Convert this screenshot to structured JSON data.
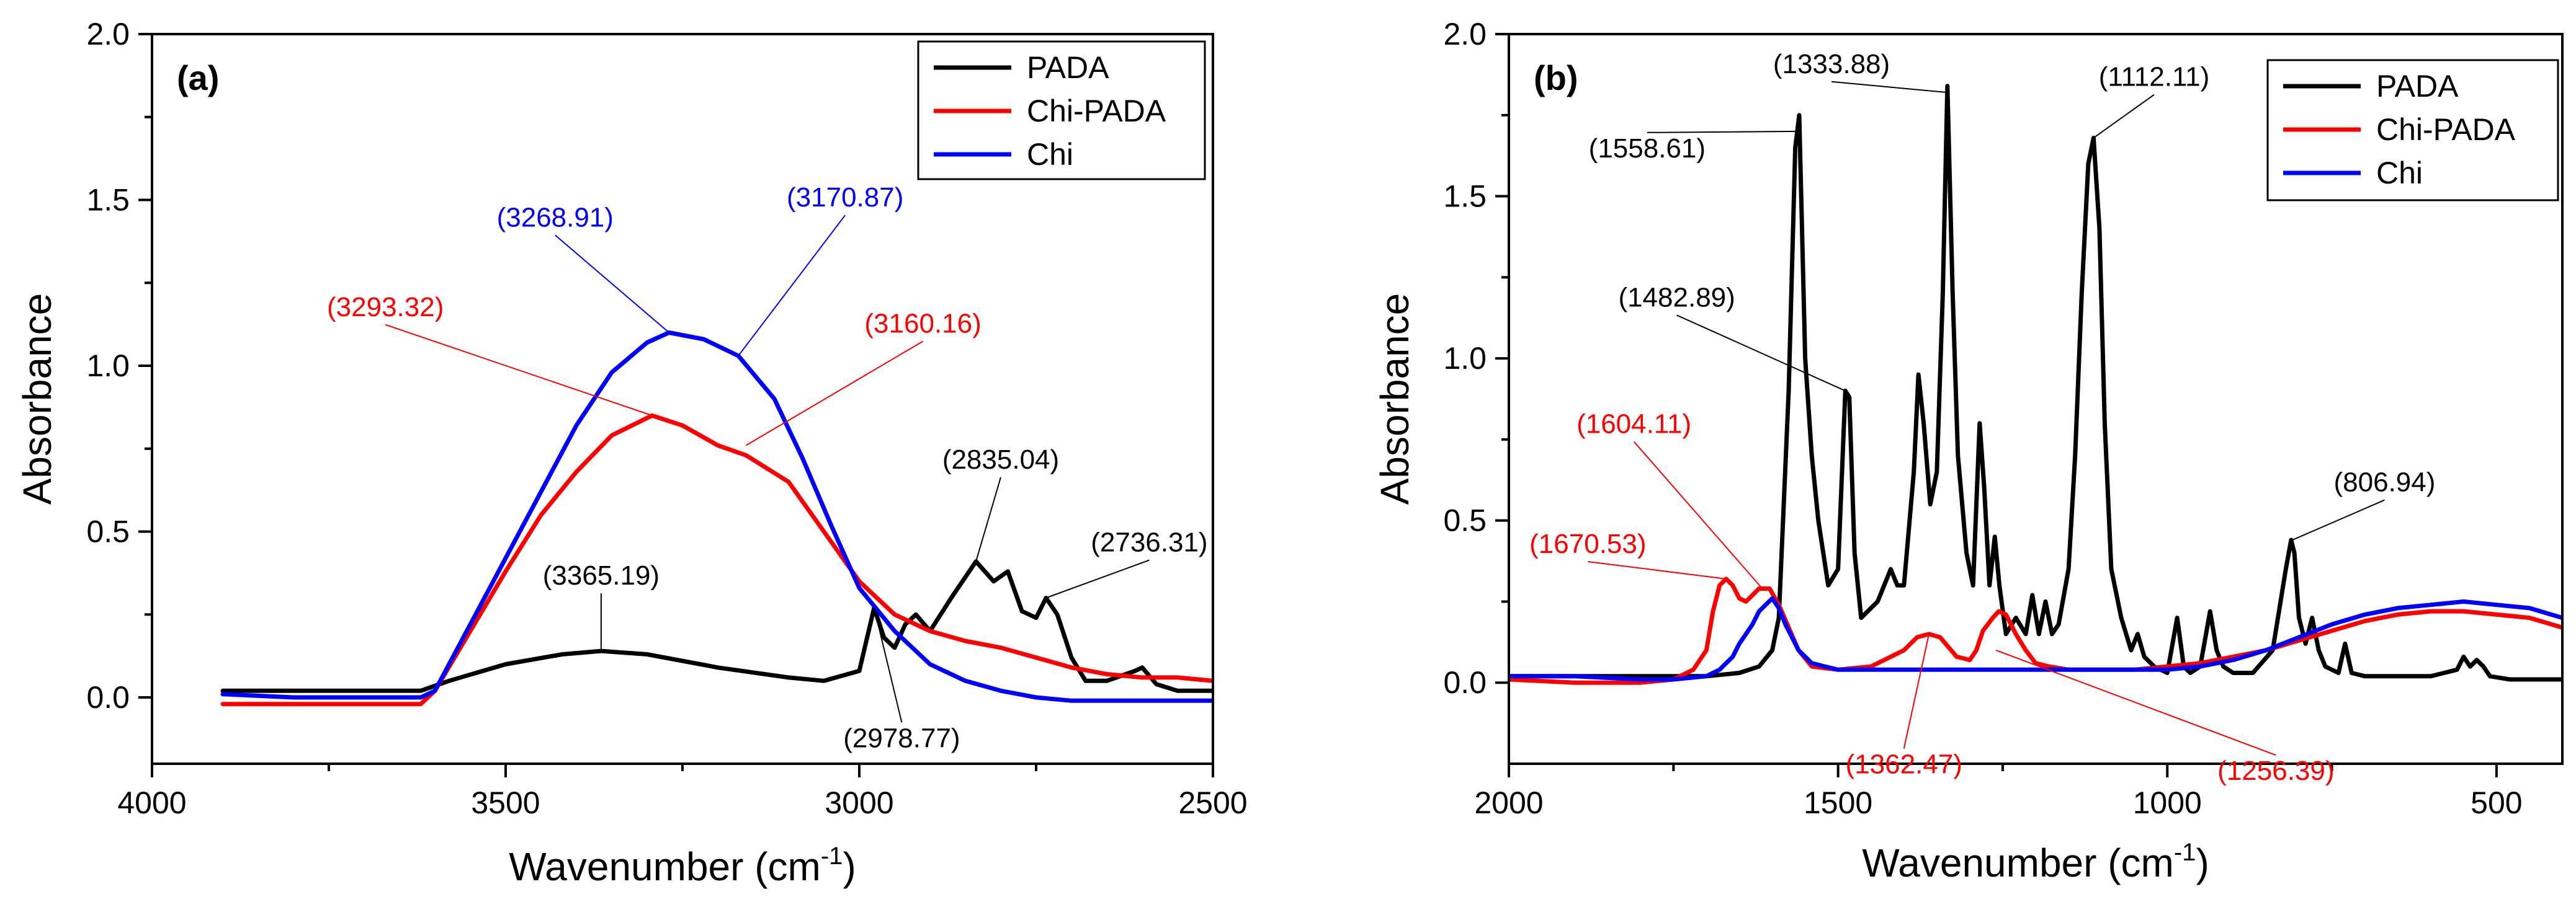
{
  "chart_data": [
    {
      "id": "a",
      "type": "line",
      "panel_label": "(a)",
      "xlabel": "Wavenumber (cm",
      "xlabel_sup": "-1",
      "xlabel_close": ")",
      "ylabel": "Absorbance",
      "xlim": [
        4000,
        2500
      ],
      "ylim": [
        -0.2,
        2.0
      ],
      "xticks": [
        4000,
        3500,
        3000,
        2500
      ],
      "xtick_labels": [
        "4000",
        "3500",
        "3000",
        "2500"
      ],
      "yticks": [
        0.0,
        0.5,
        1.0,
        1.5,
        2.0
      ],
      "ytick_labels": [
        "0.0",
        "0.5",
        "1.0",
        "1.5",
        "2.0"
      ],
      "legend_position": "top-right",
      "series": [
        {
          "name": "PADA",
          "color": "#000000",
          "x": [
            3900,
            3800,
            3700,
            3620,
            3580,
            3500,
            3420,
            3365,
            3300,
            3200,
            3100,
            3050,
            3000,
            2979,
            2965,
            2950,
            2935,
            2920,
            2900,
            2870,
            2835,
            2810,
            2790,
            2770,
            2750,
            2736,
            2720,
            2700,
            2680,
            2650,
            2610,
            2600,
            2580,
            2550,
            2500
          ],
          "y": [
            0.02,
            0.02,
            0.02,
            0.02,
            0.05,
            0.1,
            0.13,
            0.14,
            0.13,
            0.09,
            0.06,
            0.05,
            0.08,
            0.27,
            0.18,
            0.15,
            0.22,
            0.25,
            0.2,
            0.3,
            0.41,
            0.35,
            0.38,
            0.26,
            0.24,
            0.3,
            0.25,
            0.12,
            0.05,
            0.05,
            0.08,
            0.09,
            0.04,
            0.02,
            0.02
          ]
        },
        {
          "name": "Chi-PADA",
          "color": "#ff0000",
          "x": [
            3900,
            3800,
            3700,
            3620,
            3600,
            3550,
            3500,
            3450,
            3400,
            3350,
            3293,
            3250,
            3200,
            3160,
            3100,
            3050,
            3000,
            2950,
            2900,
            2850,
            2800,
            2750,
            2700,
            2650,
            2600,
            2550,
            2500
          ],
          "y": [
            -0.02,
            -0.02,
            -0.02,
            -0.02,
            0.02,
            0.2,
            0.38,
            0.55,
            0.68,
            0.79,
            0.85,
            0.82,
            0.76,
            0.73,
            0.65,
            0.5,
            0.35,
            0.25,
            0.2,
            0.17,
            0.15,
            0.12,
            0.09,
            0.07,
            0.06,
            0.06,
            0.05
          ]
        },
        {
          "name": "Chi",
          "color": "#0000ff",
          "x": [
            3900,
            3800,
            3700,
            3620,
            3600,
            3550,
            3500,
            3450,
            3400,
            3350,
            3300,
            3269,
            3220,
            3171,
            3120,
            3080,
            3040,
            3000,
            2950,
            2900,
            2850,
            2800,
            2750,
            2700,
            2600,
            2500
          ],
          "y": [
            0.01,
            0.0,
            0.0,
            0.0,
            0.02,
            0.22,
            0.42,
            0.62,
            0.82,
            0.98,
            1.07,
            1.1,
            1.08,
            1.03,
            0.9,
            0.72,
            0.52,
            0.33,
            0.2,
            0.1,
            0.05,
            0.02,
            0.0,
            -0.01,
            -0.01,
            -0.01
          ]
        }
      ],
      "annotations": [
        {
          "text": "(3268.91)",
          "color": "#0000ff",
          "x": 3269,
          "y": 1.1,
          "tx": 3430,
          "ty": 1.42
        },
        {
          "text": "(3170.87)",
          "color": "#0000ff",
          "x": 3171,
          "y": 1.03,
          "tx": 3020,
          "ty": 1.48
        },
        {
          "text": "(3293.32)",
          "color": "#ff0000",
          "x": 3293,
          "y": 0.85,
          "tx": 3670,
          "ty": 1.15
        },
        {
          "text": "(3160.16)",
          "color": "#ff0000",
          "x": 3160,
          "y": 0.76,
          "tx": 2910,
          "ty": 1.1
        },
        {
          "text": "(3365.19)",
          "color": "#000000",
          "x": 3365,
          "y": 0.14,
          "tx": 3365,
          "ty": 0.34
        },
        {
          "text": "(2835.04)",
          "color": "#000000",
          "x": 2835,
          "y": 0.41,
          "tx": 2800,
          "ty": 0.69
        },
        {
          "text": "(2736.31)",
          "color": "#000000",
          "x": 2736,
          "y": 0.3,
          "tx": 2590,
          "ty": 0.44
        },
        {
          "text": "(2978.77)",
          "color": "#000000",
          "x": 2979,
          "y": 0.27,
          "tx": 2940,
          "ty": -0.15
        }
      ]
    },
    {
      "id": "b",
      "type": "line",
      "panel_label": "(b)",
      "xlabel": "Wavenumber (cm",
      "xlabel_sup": "-1",
      "xlabel_close": ")",
      "ylabel": "Absorbance",
      "xlim": [
        2000,
        400
      ],
      "ylim": [
        -0.25,
        2.0
      ],
      "xticks": [
        2000,
        1500,
        1000,
        500
      ],
      "xtick_labels": [
        "2000",
        "1500",
        "1000",
        "500"
      ],
      "yticks": [
        0.0,
        0.5,
        1.0,
        1.5,
        2.0
      ],
      "ytick_labels": [
        "0.0",
        "0.5",
        "1.0",
        "1.5",
        "2.0"
      ],
      "legend_position": "top-right",
      "series": [
        {
          "name": "PADA",
          "color": "#000000",
          "x": [
            2000,
            1800,
            1700,
            1650,
            1620,
            1600,
            1590,
            1575,
            1565,
            1559,
            1550,
            1540,
            1530,
            1515,
            1500,
            1489,
            1483,
            1475,
            1465,
            1440,
            1420,
            1410,
            1400,
            1385,
            1378,
            1370,
            1360,
            1350,
            1341,
            1334,
            1326,
            1318,
            1305,
            1295,
            1285,
            1278,
            1270,
            1262,
            1255,
            1245,
            1230,
            1215,
            1205,
            1195,
            1185,
            1175,
            1165,
            1150,
            1140,
            1130,
            1120,
            1112,
            1103,
            1095,
            1085,
            1070,
            1055,
            1045,
            1035,
            1020,
            1000,
            985,
            975,
            965,
            950,
            935,
            925,
            915,
            900,
            870,
            840,
            820,
            812,
            807,
            800,
            790,
            780,
            770,
            760,
            740,
            730,
            720,
            700,
            650,
            600,
            560,
            550,
            540,
            530,
            520,
            510,
            480,
            400
          ],
          "y": [
            0.02,
            0.02,
            0.02,
            0.03,
            0.05,
            0.1,
            0.2,
            0.9,
            1.65,
            1.75,
            1.0,
            0.7,
            0.5,
            0.3,
            0.35,
            0.9,
            0.88,
            0.4,
            0.2,
            0.25,
            0.35,
            0.3,
            0.3,
            0.65,
            0.95,
            0.8,
            0.55,
            0.65,
            1.2,
            1.84,
            1.2,
            0.7,
            0.4,
            0.3,
            0.8,
            0.6,
            0.3,
            0.45,
            0.3,
            0.15,
            0.2,
            0.15,
            0.27,
            0.15,
            0.25,
            0.15,
            0.18,
            0.35,
            0.7,
            1.2,
            1.6,
            1.68,
            1.4,
            0.8,
            0.35,
            0.2,
            0.1,
            0.15,
            0.08,
            0.05,
            0.03,
            0.2,
            0.05,
            0.03,
            0.05,
            0.22,
            0.1,
            0.05,
            0.03,
            0.03,
            0.1,
            0.35,
            0.44,
            0.4,
            0.2,
            0.12,
            0.2,
            0.1,
            0.05,
            0.03,
            0.12,
            0.03,
            0.02,
            0.02,
            0.02,
            0.04,
            0.08,
            0.05,
            0.07,
            0.05,
            0.02,
            0.01,
            0.01
          ]
        },
        {
          "name": "Chi-PADA",
          "color": "#ff0000",
          "x": [
            2000,
            1900,
            1800,
            1750,
            1720,
            1700,
            1690,
            1680,
            1670,
            1660,
            1650,
            1640,
            1630,
            1620,
            1604,
            1590,
            1575,
            1560,
            1540,
            1500,
            1450,
            1400,
            1380,
            1362,
            1345,
            1320,
            1300,
            1290,
            1280,
            1265,
            1256,
            1245,
            1230,
            1215,
            1200,
            1180,
            1150,
            1100,
            1050,
            1000,
            950,
            900,
            850,
            800,
            750,
            700,
            650,
            600,
            550,
            500,
            450,
            400
          ],
          "y": [
            0.01,
            0.0,
            0.0,
            0.01,
            0.04,
            0.1,
            0.22,
            0.3,
            0.32,
            0.3,
            0.26,
            0.25,
            0.27,
            0.29,
            0.29,
            0.24,
            0.17,
            0.1,
            0.05,
            0.04,
            0.05,
            0.1,
            0.14,
            0.15,
            0.14,
            0.08,
            0.07,
            0.1,
            0.16,
            0.2,
            0.22,
            0.21,
            0.15,
            0.1,
            0.06,
            0.05,
            0.04,
            0.04,
            0.04,
            0.05,
            0.06,
            0.08,
            0.1,
            0.13,
            0.16,
            0.19,
            0.21,
            0.22,
            0.22,
            0.21,
            0.2,
            0.17
          ]
        },
        {
          "name": "Chi",
          "color": "#0000ff",
          "x": [
            2000,
            1900,
            1800,
            1750,
            1700,
            1680,
            1660,
            1650,
            1640,
            1630,
            1620,
            1610,
            1600,
            1590,
            1580,
            1560,
            1540,
            1520,
            1500,
            1450,
            1400,
            1350,
            1300,
            1250,
            1200,
            1150,
            1100,
            1050,
            1000,
            950,
            900,
            850,
            800,
            750,
            700,
            650,
            600,
            550,
            500,
            450,
            400
          ],
          "y": [
            0.02,
            0.02,
            0.01,
            0.01,
            0.02,
            0.04,
            0.08,
            0.12,
            0.15,
            0.18,
            0.22,
            0.24,
            0.26,
            0.23,
            0.18,
            0.1,
            0.06,
            0.05,
            0.04,
            0.04,
            0.04,
            0.04,
            0.04,
            0.04,
            0.04,
            0.04,
            0.04,
            0.04,
            0.04,
            0.05,
            0.07,
            0.1,
            0.14,
            0.18,
            0.21,
            0.23,
            0.24,
            0.25,
            0.24,
            0.23,
            0.2
          ]
        }
      ],
      "annotations": [
        {
          "text": "(1558.61)",
          "color": "#000000",
          "x": 1559,
          "y": 1.7,
          "tx": 1790,
          "ty": 1.62
        },
        {
          "text": "(1333.88)",
          "color": "#000000",
          "x": 1334,
          "y": 1.82,
          "tx": 1510,
          "ty": 1.88
        },
        {
          "text": "(1112.11)",
          "color": "#000000",
          "x": 1112,
          "y": 1.68,
          "tx": 1020,
          "ty": 1.84
        },
        {
          "text": "(1482.89)",
          "color": "#000000",
          "x": 1489,
          "y": 0.9,
          "tx": 1745,
          "ty": 1.16
        },
        {
          "text": "(1604.11)",
          "color": "#ff0000",
          "x": 1615,
          "y": 0.29,
          "tx": 1810,
          "ty": 0.77
        },
        {
          "text": "(1670.53)",
          "color": "#ff0000",
          "x": 1670,
          "y": 0.32,
          "tx": 1880,
          "ty": 0.4
        },
        {
          "text": "(1362.47)",
          "color": "#ff0000",
          "x": 1362,
          "y": 0.15,
          "tx": 1400,
          "ty": -0.28
        },
        {
          "text": "(1256.39)",
          "color": "#ff0000",
          "x": 1260,
          "y": 0.1,
          "tx": 835,
          "ty": -0.3
        },
        {
          "text": "(806.94)",
          "color": "#000000",
          "x": 810,
          "y": 0.44,
          "tx": 670,
          "ty": 0.59
        }
      ]
    }
  ]
}
